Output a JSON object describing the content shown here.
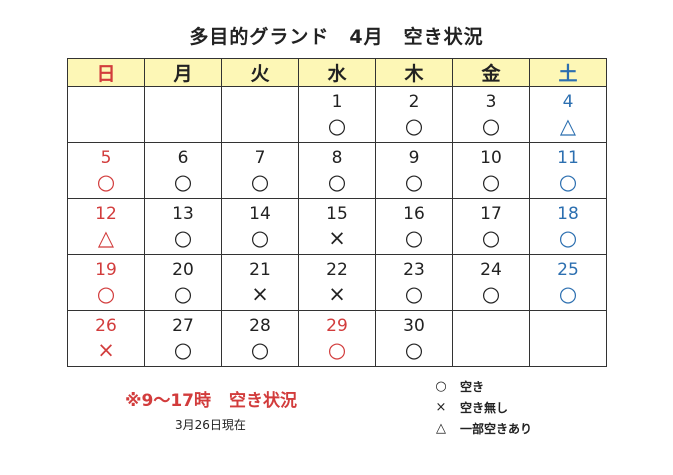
{
  "title": "多目的グランド　4月　空き状況",
  "weekdays": [
    "日",
    "月",
    "火",
    "水",
    "木",
    "金",
    "土"
  ],
  "weeks": [
    [
      {
        "d": "",
        "m": ""
      },
      {
        "d": "",
        "m": ""
      },
      {
        "d": "",
        "m": ""
      },
      {
        "d": "1",
        "m": "○"
      },
      {
        "d": "2",
        "m": "○"
      },
      {
        "d": "3",
        "m": "○"
      },
      {
        "d": "4",
        "m": "△"
      }
    ],
    [
      {
        "d": "5",
        "m": "○"
      },
      {
        "d": "6",
        "m": "○"
      },
      {
        "d": "7",
        "m": "○"
      },
      {
        "d": "8",
        "m": "○"
      },
      {
        "d": "9",
        "m": "○"
      },
      {
        "d": "10",
        "m": "○"
      },
      {
        "d": "11",
        "m": "○"
      }
    ],
    [
      {
        "d": "12",
        "m": "△"
      },
      {
        "d": "13",
        "m": "○"
      },
      {
        "d": "14",
        "m": "○"
      },
      {
        "d": "15",
        "m": "×"
      },
      {
        "d": "16",
        "m": "○"
      },
      {
        "d": "17",
        "m": "○"
      },
      {
        "d": "18",
        "m": "○"
      }
    ],
    [
      {
        "d": "19",
        "m": "○"
      },
      {
        "d": "20",
        "m": "○"
      },
      {
        "d": "21",
        "m": "×"
      },
      {
        "d": "22",
        "m": "×"
      },
      {
        "d": "23",
        "m": "○"
      },
      {
        "d": "24",
        "m": "○"
      },
      {
        "d": "25",
        "m": "○"
      }
    ],
    [
      {
        "d": "26",
        "m": "×"
      },
      {
        "d": "27",
        "m": "○"
      },
      {
        "d": "28",
        "m": "○"
      },
      {
        "d": "29",
        "m": "○",
        "holiday": true
      },
      {
        "d": "30",
        "m": "○"
      },
      {
        "d": "",
        "m": ""
      },
      {
        "d": "",
        "m": ""
      }
    ]
  ],
  "note": {
    "hours": "※9～17時",
    "label": "空き状況"
  },
  "as_of": "3月26日現在",
  "legend": [
    {
      "symbol": "○",
      "text": "空き"
    },
    {
      "symbol": "×",
      "text": "空き無し"
    },
    {
      "symbol": "△",
      "text": "一部空きあり"
    }
  ],
  "colors": {
    "sunday": "#d23c3c",
    "holiday": "#d23c3c",
    "saturday": "#2c6fb0",
    "header_bg": "#fdf7b6"
  }
}
